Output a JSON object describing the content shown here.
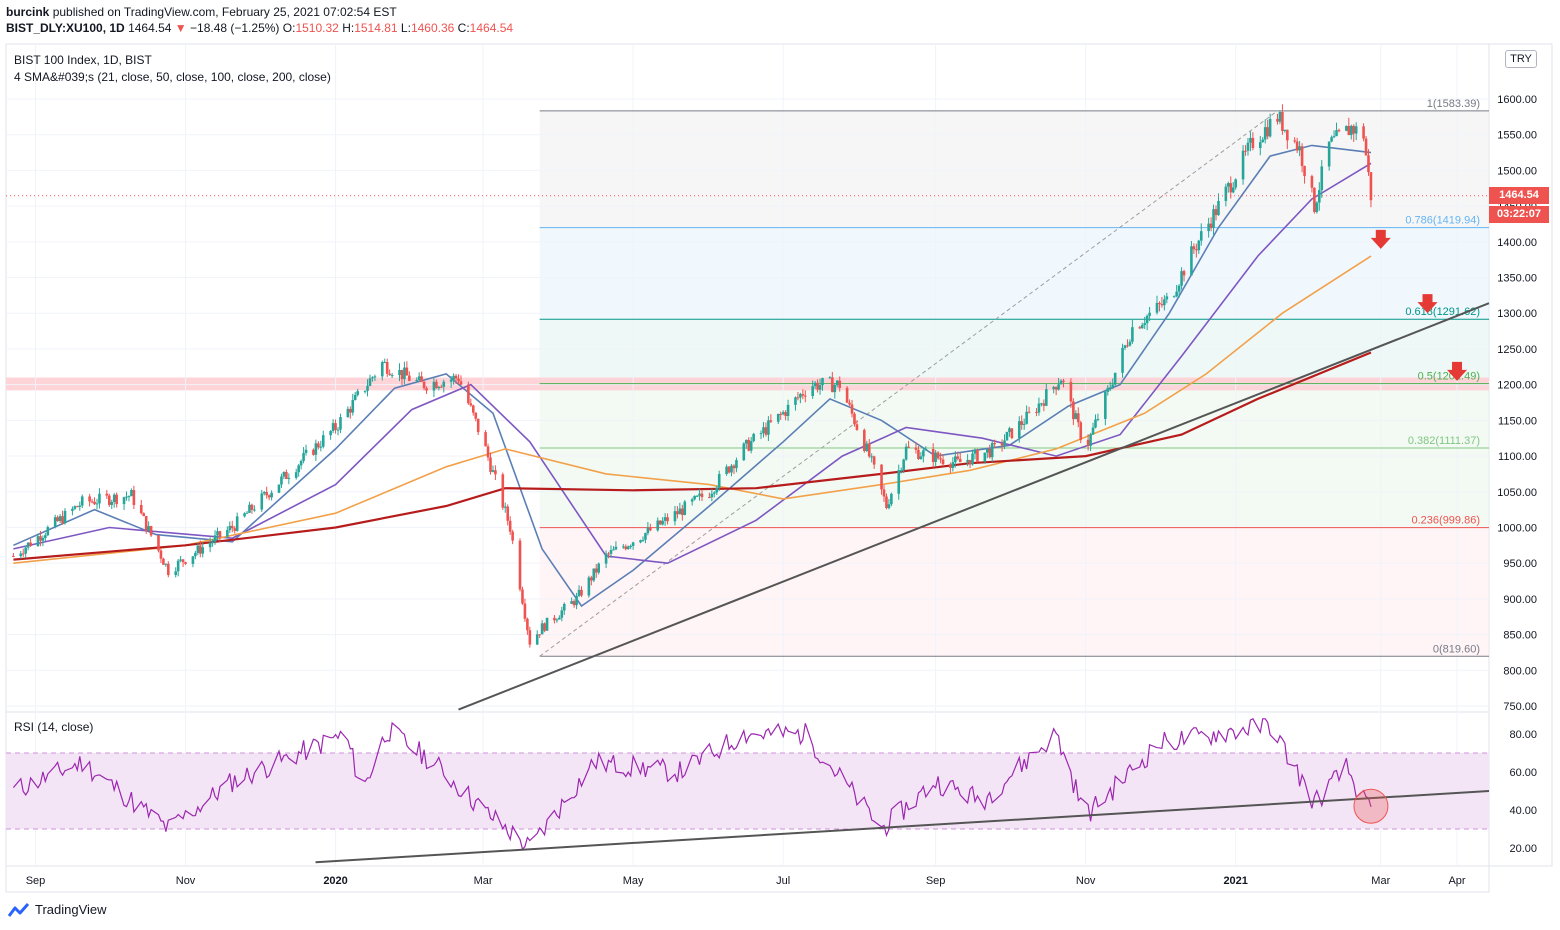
{
  "header": {
    "author": "burcink",
    "published": "published on TradingView.com, February 25, 2021 07:02:54 EST",
    "symbol": "BIST_DLY:XU100, 1D",
    "last": "1464.54",
    "change_arrow": "▼",
    "change": "−18.48 (−1.25%)",
    "o_label": "O:",
    "o": "1510.32",
    "h_label": "H:",
    "h": "1514.81",
    "l_label": "L:",
    "l": "1460.36",
    "c_label": "C:",
    "c": "1464.54"
  },
  "legend": {
    "title": "BIST 100 Index, 1D, BIST",
    "sma": "4 SMA&#039;s (21, close, 50, close, 100, close, 200, close)"
  },
  "currency_badge": "TRY",
  "price_tag": "1464.54",
  "countdown_tag": "03:22:07",
  "rsi_title": "RSI (14, close)",
  "footer": {
    "brand": "TradingView",
    "logo_icon": "tradingview-logo-icon"
  },
  "colors": {
    "up": "#26a69a",
    "down": "#ef5350",
    "sma21": "#5b7fb5",
    "sma50": "#7e57c2",
    "sma100": "#f2a14a",
    "sma200": "#b71c1c",
    "resistance_zone": "#ffcdd2",
    "rsi_line": "#9c27b0",
    "rsi_band": "#f3e5f5",
    "trendline": "#555555",
    "arrow": "#e53935"
  },
  "chart_data": [
    {
      "type": "candlestick",
      "title": "BIST 100 Index, 1D, BIST",
      "x_ticks": [
        "Sep",
        "Nov",
        "2020",
        "Mar",
        "May",
        "Jul",
        "Sep",
        "Nov",
        "2021",
        "Mar",
        "Apr"
      ],
      "y_ticks": [
        750,
        800,
        850,
        900,
        950,
        1000,
        1050,
        1100,
        1150,
        1200,
        1250,
        1300,
        1350,
        1400,
        1450,
        1500,
        1550,
        1600
      ],
      "ylim": [
        740,
        1650
      ],
      "fibonacci": [
        {
          "label": "1(1583.39)",
          "value": 1583.39,
          "color": "#787b86"
        },
        {
          "label": "0.786(1419.94)",
          "value": 1419.94,
          "color": "#64b5f6"
        },
        {
          "label": "0.618(1291.62)",
          "value": 1291.62,
          "color": "#009688"
        },
        {
          "label": "0.5(1201.49)",
          "value": 1201.49,
          "color": "#4caf50"
        },
        {
          "label": "0.382(1111.37)",
          "value": 1111.37,
          "color": "#81c784"
        },
        {
          "label": "0.236(999.86)",
          "value": 999.86,
          "color": "#ef5350"
        },
        {
          "label": "0(819.60)",
          "value": 819.6,
          "color": "#787b86"
        }
      ],
      "resistance_zone": [
        1192,
        1210
      ],
      "key_points": [
        {
          "date": "2019-08-23",
          "close": 960
        },
        {
          "date": "2019-09-20",
          "close": 1035
        },
        {
          "date": "2019-10-10",
          "close": 1045
        },
        {
          "date": "2019-10-25",
          "close": 940
        },
        {
          "date": "2019-11-20",
          "close": 1000
        },
        {
          "date": "2020-01-01",
          "close": 1140
        },
        {
          "date": "2020-01-20",
          "close": 1230
        },
        {
          "date": "2020-02-05",
          "close": 1200
        },
        {
          "date": "2020-02-20",
          "close": 1210
        },
        {
          "date": "2020-03-01",
          "close": 1120
        },
        {
          "date": "2020-03-12",
          "close": 1000
        },
        {
          "date": "2020-03-20",
          "close": 840
        },
        {
          "date": "2020-03-25",
          "close": 860
        },
        {
          "date": "2020-04-08",
          "close": 900
        },
        {
          "date": "2020-04-20",
          "close": 960
        },
        {
          "date": "2020-05-10",
          "close": 1000
        },
        {
          "date": "2020-06-01",
          "close": 1050
        },
        {
          "date": "2020-06-15",
          "close": 1110
        },
        {
          "date": "2020-07-01",
          "close": 1160
        },
        {
          "date": "2020-07-12",
          "close": 1200
        },
        {
          "date": "2020-07-24",
          "close": 1200
        },
        {
          "date": "2020-08-05",
          "close": 1100
        },
        {
          "date": "2020-08-12",
          "close": 1030
        },
        {
          "date": "2020-08-20",
          "close": 1110
        },
        {
          "date": "2020-09-10",
          "close": 1090
        },
        {
          "date": "2020-09-25",
          "close": 1110
        },
        {
          "date": "2020-10-10",
          "close": 1160
        },
        {
          "date": "2020-10-22",
          "close": 1210
        },
        {
          "date": "2020-11-01",
          "close": 1110
        },
        {
          "date": "2020-11-10",
          "close": 1190
        },
        {
          "date": "2020-11-20",
          "close": 1280
        },
        {
          "date": "2020-12-05",
          "close": 1320
        },
        {
          "date": "2020-12-15",
          "close": 1390
        },
        {
          "date": "2020-12-25",
          "close": 1450
        },
        {
          "date": "2021-01-08",
          "close": 1540
        },
        {
          "date": "2021-01-18",
          "close": 1575
        },
        {
          "date": "2021-01-27",
          "close": 1530
        },
        {
          "date": "2021-02-02",
          "close": 1450
        },
        {
          "date": "2021-02-08",
          "close": 1535
        },
        {
          "date": "2021-02-17",
          "close": 1560
        },
        {
          "date": "2021-02-22",
          "close": 1550
        },
        {
          "date": "2021-02-25",
          "close": 1464.54
        }
      ],
      "sma_series": [
        {
          "name": "21",
          "points": [
            [
              "2019-08-23",
              975
            ],
            [
              "2019-09-25",
              1025
            ],
            [
              "2019-10-20",
              990
            ],
            [
              "2019-11-20",
              980
            ],
            [
              "2020-01-01",
              1110
            ],
            [
              "2020-01-25",
              1195
            ],
            [
              "2020-02-15",
              1215
            ],
            [
              "2020-03-05",
              1160
            ],
            [
              "2020-03-25",
              970
            ],
            [
              "2020-04-10",
              890
            ],
            [
              "2020-05-01",
              940
            ],
            [
              "2020-06-01",
              1030
            ],
            [
              "2020-07-01",
              1120
            ],
            [
              "2020-07-20",
              1180
            ],
            [
              "2020-08-10",
              1150
            ],
            [
              "2020-09-01",
              1100
            ],
            [
              "2020-10-01",
              1115
            ],
            [
              "2020-10-25",
              1170
            ],
            [
              "2020-11-15",
              1200
            ],
            [
              "2020-12-05",
              1300
            ],
            [
              "2020-12-25",
              1420
            ],
            [
              "2021-01-15",
              1520
            ],
            [
              "2021-02-01",
              1535
            ],
            [
              "2021-02-25",
              1525
            ]
          ]
        },
        {
          "name": "50",
          "points": [
            [
              "2019-08-23",
              970
            ],
            [
              "2019-10-01",
              1000
            ],
            [
              "2019-11-20",
              985
            ],
            [
              "2020-01-01",
              1060
            ],
            [
              "2020-02-01",
              1165
            ],
            [
              "2020-02-25",
              1200
            ],
            [
              "2020-03-20",
              1120
            ],
            [
              "2020-04-20",
              960
            ],
            [
              "2020-05-15",
              950
            ],
            [
              "2020-06-20",
              1010
            ],
            [
              "2020-07-25",
              1100
            ],
            [
              "2020-08-20",
              1140
            ],
            [
              "2020-09-20",
              1125
            ],
            [
              "2020-10-20",
              1100
            ],
            [
              "2020-11-15",
              1130
            ],
            [
              "2020-12-10",
              1240
            ],
            [
              "2021-01-10",
              1380
            ],
            [
              "2021-02-01",
              1460
            ],
            [
              "2021-02-25",
              1510
            ]
          ]
        },
        {
          "name": "100",
          "points": [
            [
              "2019-08-23",
              950
            ],
            [
              "2019-11-01",
              975
            ],
            [
              "2020-01-01",
              1020
            ],
            [
              "2020-02-15",
              1085
            ],
            [
              "2020-03-10",
              1110
            ],
            [
              "2020-04-20",
              1075
            ],
            [
              "2020-06-01",
              1060
            ],
            [
              "2020-07-01",
              1040
            ],
            [
              "2020-08-10",
              1060
            ],
            [
              "2020-09-15",
              1080
            ],
            [
              "2020-10-20",
              1110
            ],
            [
              "2020-11-25",
              1160
            ],
            [
              "2020-12-20",
              1215
            ],
            [
              "2021-01-20",
              1300
            ],
            [
              "2021-02-25",
              1380
            ]
          ]
        },
        {
          "name": "200",
          "points": [
            [
              "2019-08-23",
              955
            ],
            [
              "2019-11-01",
              975
            ],
            [
              "2020-01-01",
              1000
            ],
            [
              "2020-02-15",
              1030
            ],
            [
              "2020-03-10",
              1055
            ],
            [
              "2020-05-01",
              1052
            ],
            [
              "2020-06-20",
              1055
            ],
            [
              "2020-08-10",
              1075
            ],
            [
              "2020-09-15",
              1090
            ],
            [
              "2020-11-01",
              1100
            ],
            [
              "2020-12-10",
              1130
            ],
            [
              "2021-01-10",
              1180
            ],
            [
              "2021-02-25",
              1245
            ]
          ]
        }
      ]
    },
    {
      "type": "line",
      "title": "RSI (14, close)",
      "y_ticks": [
        20,
        40,
        60,
        80
      ],
      "band": [
        30,
        70
      ],
      "ylim": [
        12,
        90
      ],
      "key_points": [
        {
          "date": "2019-08-23",
          "value": 50
        },
        {
          "date": "2019-09-20",
          "value": 65
        },
        {
          "date": "2019-10-25",
          "value": 30
        },
        {
          "date": "2019-11-20",
          "value": 55
        },
        {
          "date": "2020-01-05",
          "value": 80
        },
        {
          "date": "2020-01-12",
          "value": 50
        },
        {
          "date": "2020-01-22",
          "value": 82
        },
        {
          "date": "2020-02-10",
          "value": 65
        },
        {
          "date": "2020-03-01",
          "value": 40
        },
        {
          "date": "2020-03-20",
          "value": 20
        },
        {
          "date": "2020-04-15",
          "value": 65
        },
        {
          "date": "2020-05-20",
          "value": 60
        },
        {
          "date": "2020-06-15",
          "value": 80
        },
        {
          "date": "2020-07-10",
          "value": 80
        },
        {
          "date": "2020-08-10",
          "value": 30
        },
        {
          "date": "2020-09-01",
          "value": 55
        },
        {
          "date": "2020-09-20",
          "value": 45
        },
        {
          "date": "2020-10-20",
          "value": 80
        },
        {
          "date": "2020-11-01",
          "value": 37
        },
        {
          "date": "2020-12-01",
          "value": 75
        },
        {
          "date": "2021-01-15",
          "value": 85
        },
        {
          "date": "2021-02-02",
          "value": 44
        },
        {
          "date": "2021-02-15",
          "value": 62
        },
        {
          "date": "2021-02-25",
          "value": 38
        }
      ]
    }
  ]
}
